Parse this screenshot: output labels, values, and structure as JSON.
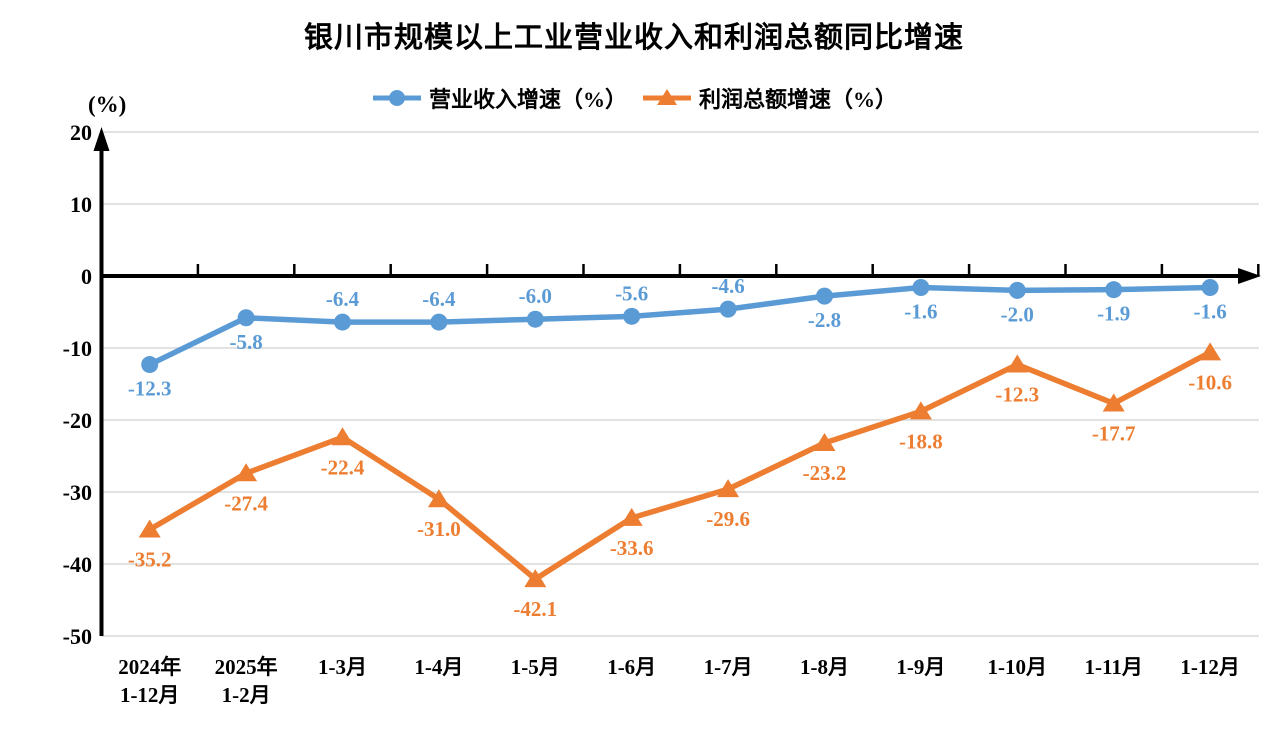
{
  "chart_data": {
    "type": "line",
    "title": "银川市规模以上工业营业收入和利润总额同比增速",
    "ylabel": "(%)",
    "ylim": [
      -50,
      20
    ],
    "yticks": [
      20,
      10,
      0,
      -10,
      -20,
      -30,
      -40,
      -50
    ],
    "grid": true,
    "grid_color": "#D9D9D9",
    "axis_color": "#000000",
    "legend_position": "top",
    "categories": [
      [
        "2024年",
        "1-12月"
      ],
      [
        "2025年",
        "1-2月"
      ],
      [
        "1-3月"
      ],
      [
        "1-4月"
      ],
      [
        "1-5月"
      ],
      [
        "1-6月"
      ],
      [
        "1-7月"
      ],
      [
        "1-8月"
      ],
      [
        "1-9月"
      ],
      [
        "1-10月"
      ],
      [
        "1-11月"
      ],
      [
        "1-12月"
      ]
    ],
    "series": [
      {
        "name": "营业收入增速（%）",
        "color": "#5B9BD5",
        "marker": "circle",
        "values": [
          -12.3,
          -5.8,
          -6.4,
          -6.4,
          -6.0,
          -5.6,
          -4.6,
          -2.8,
          -1.6,
          -2.0,
          -1.9,
          -1.6
        ],
        "labels": [
          "-12.3",
          "-5.8",
          "-6.4",
          "-6.4",
          "-6.0",
          "-5.6",
          "-4.6",
          "-2.8",
          "-1.6",
          "-2.0",
          "-1.9",
          "-1.6"
        ],
        "label_side": [
          "below",
          "below",
          "above",
          "above",
          "above",
          "above",
          "above",
          "below",
          "below",
          "below",
          "below",
          "below"
        ]
      },
      {
        "name": "利润总额增速（%）",
        "color": "#ED7D31",
        "marker": "triangle",
        "values": [
          -35.2,
          -27.4,
          -22.4,
          -31.0,
          -42.1,
          -33.6,
          -29.6,
          -23.2,
          -18.8,
          -12.3,
          -17.7,
          -10.6
        ],
        "labels": [
          "-35.2",
          "-27.4",
          "-22.4",
          "-31.0",
          "-42.1",
          "-33.6",
          "-29.6",
          "-23.2",
          "-18.8",
          "-12.3",
          "-17.7",
          "-10.6"
        ],
        "label_side": [
          "below",
          "below",
          "below",
          "below",
          "below",
          "below",
          "below",
          "below",
          "below",
          "below",
          "below",
          "below"
        ]
      }
    ]
  }
}
